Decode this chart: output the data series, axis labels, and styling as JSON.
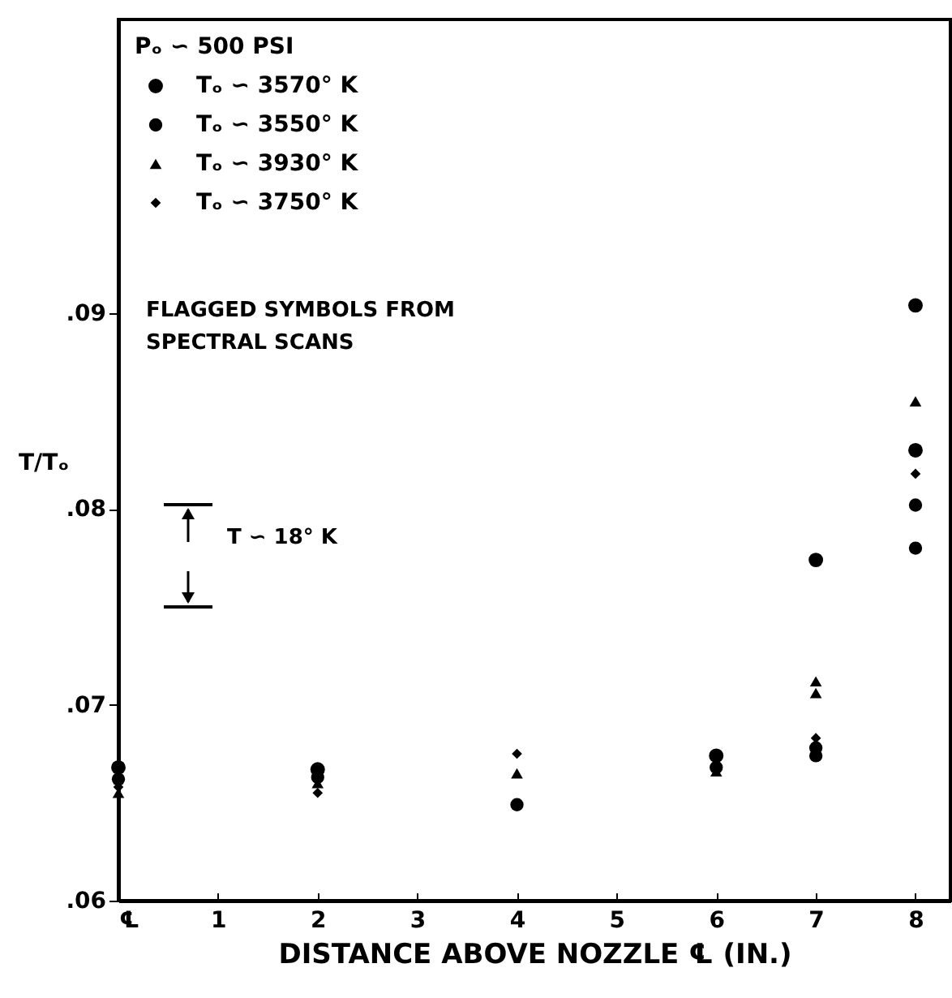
{
  "chart_data": {
    "type": "scatter",
    "xlabel": "DISTANCE  ABOVE  NOZZLE ℄  (IN.)",
    "ylabel": "T/Tₒ",
    "legend_title": "Pₒ ∽ 500  PSI",
    "legend": "top left",
    "grid": false,
    "xlim": [
      0,
      8.35
    ],
    "xticks": [
      {
        "value": 0,
        "label": "℄"
      },
      1,
      2,
      3,
      4,
      5,
      6,
      7,
      8
    ],
    "ylim": [
      0.06,
      0.105
    ],
    "yticks": [
      {
        "value": 0.06,
        "label": ".06"
      },
      {
        "value": 0.07,
        "label": ".07"
      },
      {
        "value": 0.08,
        "label": ".08"
      },
      {
        "value": 0.09,
        "label": ".09"
      }
    ],
    "series": [
      {
        "name": "Tₒ ∽ 3570° K",
        "marker": "circle",
        "color": "#000000",
        "x": [
          0,
          2,
          6,
          7,
          8,
          8
        ],
        "values": [
          0.0668,
          0.0667,
          0.0674,
          0.0774,
          0.0904,
          0.083
        ]
      },
      {
        "name": "Tₒ ∽ 3550° K",
        "marker": "circle",
        "color": "#000000",
        "x": [
          0,
          2,
          4,
          6,
          7,
          7,
          8,
          8
        ],
        "values": [
          0.0662,
          0.0663,
          0.0649,
          0.0668,
          0.0678,
          0.0674,
          0.0802,
          0.078
        ]
      },
      {
        "name": "Tₒ ∽ 3930° K",
        "marker": "triangle",
        "color": "#000000",
        "x": [
          0,
          2,
          4,
          6,
          7,
          7,
          8
        ],
        "values": [
          0.0655,
          0.066,
          0.0665,
          0.0666,
          0.0712,
          0.0706,
          0.0855
        ]
      },
      {
        "name": "Tₒ ∽ 3750° K",
        "marker": "diamond",
        "color": "#000000",
        "x": [
          0,
          2,
          4,
          7,
          8
        ],
        "values": [
          0.0658,
          0.0655,
          0.0675,
          0.0683,
          0.0818
        ]
      }
    ],
    "annotations": [
      "FLAGGED  SYMBOLS  FROM\nSPECTRAL  SCANS",
      "T ∽ 18° K"
    ]
  }
}
